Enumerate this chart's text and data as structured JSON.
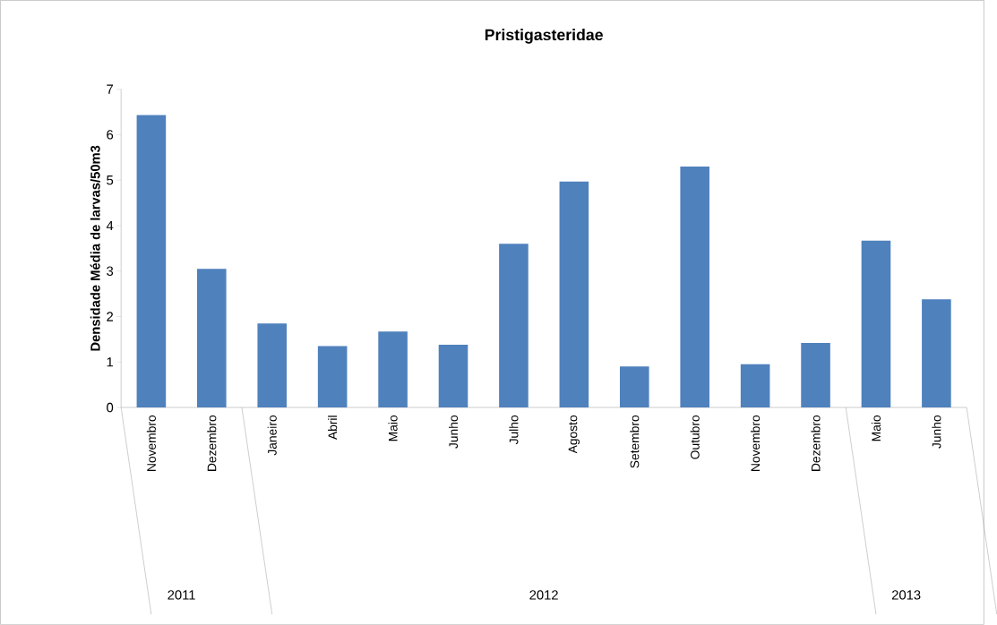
{
  "chart_data": {
    "type": "bar",
    "title": "Pristigasteridae",
    "ylabel": "Densidade Média de larvas/50m3",
    "categories": [
      "Novembro",
      "Dezembro",
      "Janeiro",
      "Abril",
      "Maio",
      "Junho",
      "Julho",
      "Agosto",
      "Setembro",
      "Outubro",
      "Novembro",
      "Dezembro",
      "Maio",
      "Junho"
    ],
    "values": [
      6.43,
      3.05,
      1.85,
      1.35,
      1.67,
      1.38,
      3.6,
      4.97,
      0.9,
      5.3,
      0.95,
      1.42,
      3.67,
      2.38
    ],
    "color": "#4f81bd",
    "ylim": [
      0,
      7
    ],
    "yticks": [
      0,
      1,
      2,
      3,
      4,
      5,
      6,
      7
    ],
    "annotations": [
      "2011",
      "2012",
      "2013"
    ]
  }
}
